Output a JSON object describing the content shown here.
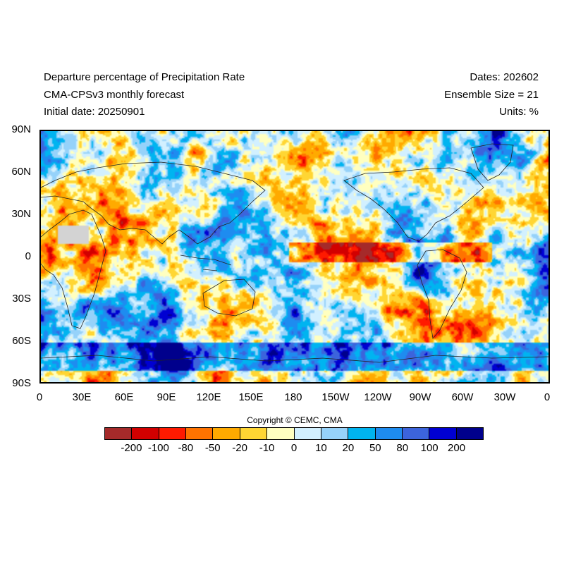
{
  "header": {
    "title": "Departure percentage of Precipitation Rate",
    "model": "CMA-CPSv3 monthly forecast",
    "initial_date": "Initial date: 20250901",
    "dates": "Dates: 202602",
    "ensemble": "Ensemble Size = 21",
    "units": "Units: %"
  },
  "axes": {
    "lat_labels": [
      "90N",
      "60N",
      "30N",
      "0",
      "30S",
      "60S",
      "90S"
    ],
    "lon_labels": [
      "0",
      "30E",
      "60E",
      "90E",
      "120E",
      "150E",
      "180",
      "150W",
      "120W",
      "90W",
      "60W",
      "30W",
      "0"
    ]
  },
  "copyright": "Copyright © CEMC, CMA",
  "colorbar": {
    "colors": [
      "#a52a2a",
      "#d20000",
      "#ff1a00",
      "#ff7300",
      "#ffaa00",
      "#ffd633",
      "#ffffc0",
      "#d2f0ff",
      "#96d2fa",
      "#00b4f0",
      "#1e8cf0",
      "#3c64dc",
      "#0000d2",
      "#00008c"
    ],
    "labels": [
      "-200",
      "-100",
      "-80",
      "-50",
      "-20",
      "-10",
      "0",
      "10",
      "20",
      "50",
      "80",
      "100",
      "200"
    ]
  },
  "colors": {
    "land_mask": "#d3d3d3",
    "frame": "#000000"
  }
}
